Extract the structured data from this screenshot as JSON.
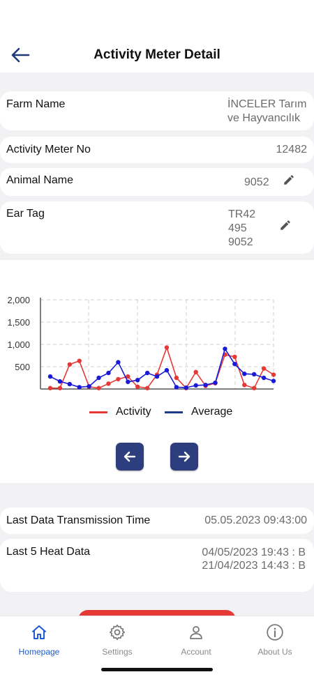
{
  "header": {
    "title": "Activity Meter Detail"
  },
  "details": {
    "farm_name": {
      "label": "Farm Name",
      "value_line1": "İNCELER Tarım",
      "value_line2": "ve Hayvancılık"
    },
    "activity_meter_no": {
      "label": "Activity Meter No",
      "value": "12482"
    },
    "animal_name": {
      "label": "Animal Name",
      "value": "9052"
    },
    "ear_tag": {
      "label": "Ear Tag",
      "value_line1": "TR42",
      "value_line2": "495",
      "value_line3": "9052"
    }
  },
  "chart_data": {
    "type": "line",
    "y_ticks": [
      "2,000",
      "1,500",
      "1,000",
      "500"
    ],
    "ylim": [
      0,
      2000
    ],
    "x": [
      1,
      2,
      3,
      4,
      5,
      6,
      7,
      8,
      9,
      10,
      11,
      12,
      13,
      14,
      15,
      16,
      17,
      18,
      19,
      20,
      21,
      22,
      23,
      24
    ],
    "series": [
      {
        "name": "Activity",
        "color": "#e53935",
        "values": [
          20,
          20,
          550,
          630,
          50,
          20,
          120,
          220,
          280,
          50,
          20,
          320,
          930,
          250,
          20,
          380,
          70,
          130,
          770,
          720,
          90,
          20,
          460,
          320
        ]
      },
      {
        "name": "Average",
        "color": "#1a1ad6",
        "values": [
          280,
          170,
          110,
          40,
          60,
          250,
          360,
          600,
          160,
          200,
          360,
          280,
          420,
          40,
          30,
          80,
          90,
          140,
          900,
          560,
          340,
          330,
          250,
          180
        ]
      }
    ],
    "grid": true,
    "legend_position": "bottom-center"
  },
  "transmission": {
    "label": "Last Data Transmission Time",
    "value": "05.05.2023 09:43:00"
  },
  "heat": {
    "label": "Last 5 Heat Data",
    "line1": "04/05/2023 19:43 : B",
    "line2": "21/04/2023 14:43 : B"
  },
  "tabs": [
    {
      "label": "Homepage",
      "icon": "home-icon",
      "active": true
    },
    {
      "label": "Settings",
      "icon": "gear-icon",
      "active": false
    },
    {
      "label": "Account",
      "icon": "person-icon",
      "active": false
    },
    {
      "label": "About Us",
      "icon": "info-icon",
      "active": false
    }
  ],
  "colors": {
    "accent": "#1e5bd8",
    "nav_button": "#2c3e7e",
    "activity": "#e53935",
    "average": "#1a1ad6"
  }
}
